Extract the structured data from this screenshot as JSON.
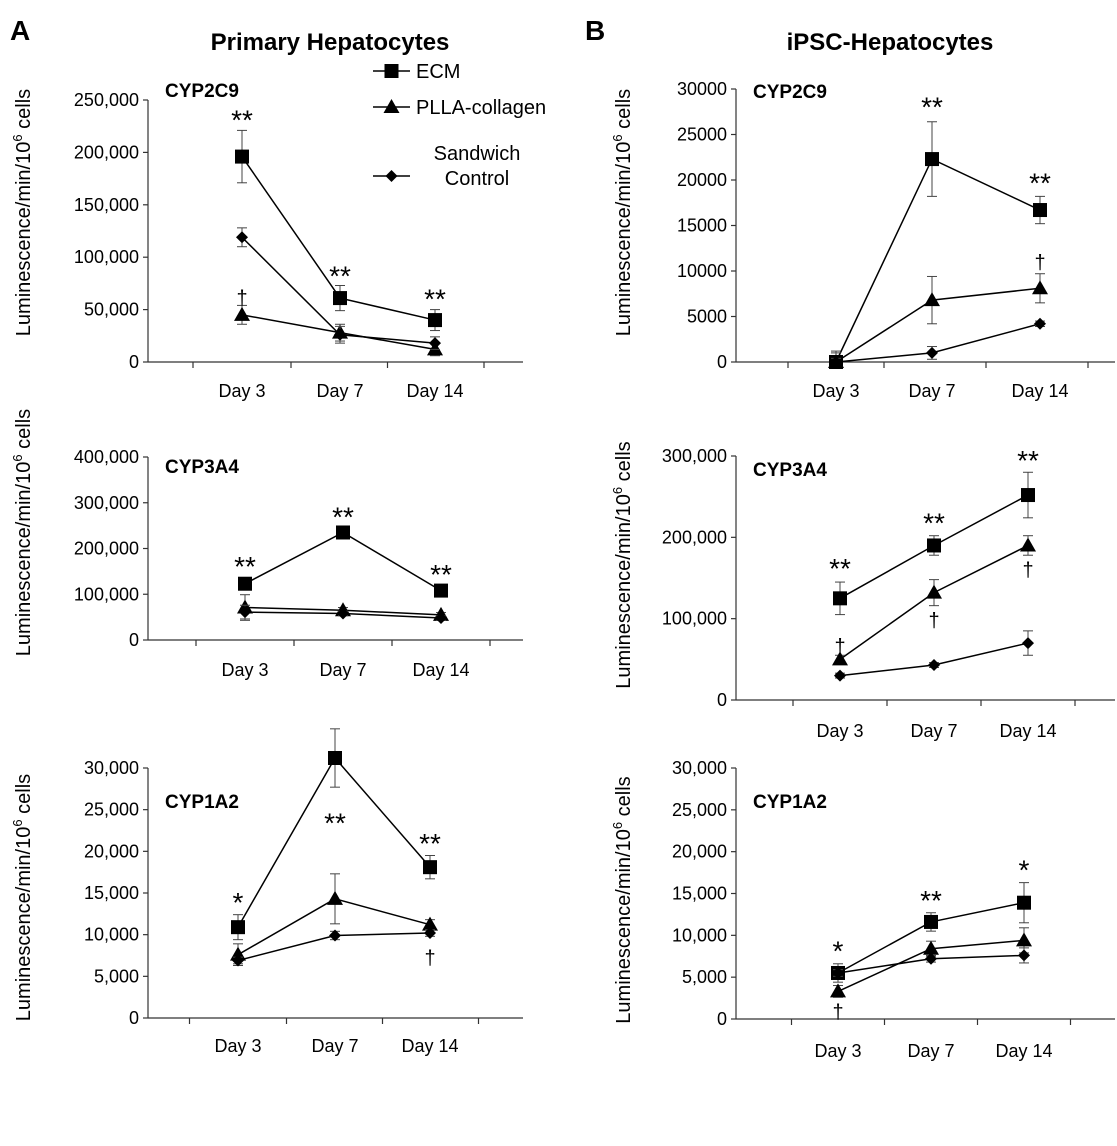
{
  "panels": {
    "A": {
      "letter": "A",
      "title": "Primary Hepatocytes"
    },
    "B": {
      "letter": "B",
      "title": "iPSC-Hepatocytes"
    }
  },
  "legend": {
    "placement": "top-right of top-left chart",
    "entries": [
      {
        "name": "ECM",
        "marker": "square"
      },
      {
        "name": "PLLA-collagen",
        "marker": "triangle"
      },
      {
        "name": "Sandwich\nControl",
        "marker": "diamond"
      }
    ]
  },
  "chart_data": [
    {
      "id": "A1",
      "panel": "A",
      "type": "line",
      "title": "CYP2C9",
      "categories": [
        "Day 3",
        "Day 7",
        "Day 14"
      ],
      "ylabel": "Luminescence/min/10^6 cells",
      "ylim": [
        0,
        250000
      ],
      "yticks": [
        0,
        50000,
        100000,
        150000,
        200000,
        250000
      ],
      "ytick_labels": [
        "0",
        "50,000",
        "100,000",
        "150,000",
        "200,000",
        "250,000"
      ],
      "grid": false,
      "series": [
        {
          "name": "ECM",
          "marker": "square",
          "values": [
            196000,
            61000,
            40000
          ],
          "errors": [
            25000,
            12000,
            10000
          ]
        },
        {
          "name": "PLLA-collagen",
          "marker": "triangle",
          "values": [
            45000,
            28000,
            12000
          ],
          "errors": [
            9000,
            8000,
            6000
          ]
        },
        {
          "name": "Sandwich\nControl",
          "marker": "diamond",
          "values": [
            119000,
            26000,
            18000
          ],
          "errors": [
            9000,
            8000,
            6000
          ]
        }
      ],
      "annotations": [
        {
          "text": "**",
          "category": 0,
          "y": 222000,
          "pos": "above"
        },
        {
          "text": "†",
          "category": 0,
          "y": 55000,
          "pos": "above"
        },
        {
          "text": "**",
          "category": 1,
          "y": 73000,
          "pos": "above"
        },
        {
          "text": "**",
          "category": 2,
          "y": 51000,
          "pos": "above"
        }
      ]
    },
    {
      "id": "A2",
      "panel": "A",
      "type": "line",
      "title": "CYP3A4",
      "categories": [
        "Day 3",
        "Day 7",
        "Day 14"
      ],
      "ylabel": "Luminescence/min/10^6 cells",
      "ylim": [
        0,
        400000
      ],
      "yticks": [
        0,
        100000,
        200000,
        300000,
        400000
      ],
      "ytick_labels": [
        "0",
        "100,000",
        "200,000",
        "300,000",
        "400,000"
      ],
      "grid": false,
      "series": [
        {
          "name": "ECM",
          "marker": "square",
          "values": [
            123000,
            235000,
            108000
          ],
          "errors": [
            0,
            0,
            0
          ]
        },
        {
          "name": "PLLA-collagen",
          "marker": "triangle",
          "values": [
            71000,
            65000,
            55000
          ],
          "errors": [
            28000,
            6000,
            5000
          ]
        },
        {
          "name": "Sandwich\nControl",
          "marker": "diamond",
          "values": [
            61000,
            58000,
            48000
          ],
          "errors": [
            15000,
            5000,
            5000
          ]
        }
      ],
      "annotations": [
        {
          "text": "**",
          "category": 0,
          "y": 140000,
          "pos": "above"
        },
        {
          "text": "**",
          "category": 1,
          "y": 248000,
          "pos": "above"
        },
        {
          "text": "**",
          "category": 2,
          "y": 122000,
          "pos": "above"
        }
      ]
    },
    {
      "id": "A3",
      "panel": "A",
      "type": "line",
      "title": "CYP1A2",
      "categories": [
        "Day 3",
        "Day 7",
        "Day 14"
      ],
      "ylabel": "Luminescence/min/10^6 cells",
      "ylim": [
        0,
        30000
      ],
      "yticks": [
        0,
        5000,
        10000,
        15000,
        20000,
        25000,
        30000
      ],
      "ytick_labels": [
        "0",
        "5,000",
        "10,000",
        "15,000",
        "20,000",
        "25,000",
        "30,000"
      ],
      "grid": false,
      "series": [
        {
          "name": "ECM",
          "marker": "square",
          "values": [
            10900,
            31200,
            18100
          ],
          "errors": [
            1500,
            3500,
            1400
          ]
        },
        {
          "name": "PLLA-collagen",
          "marker": "triangle",
          "values": [
            7600,
            14300,
            11200
          ],
          "errors": [
            1300,
            3000,
            600
          ]
        },
        {
          "name": "Sandwich\nControl",
          "marker": "diamond",
          "values": [
            6900,
            9900,
            10200
          ],
          "errors": [
            400,
            500,
            400
          ]
        }
      ],
      "annotations": [
        {
          "text": "*",
          "category": 0,
          "y": 12700,
          "pos": "above"
        },
        {
          "text": "**",
          "category": 1,
          "y": 25400,
          "pos": "below"
        },
        {
          "text": "**",
          "category": 2,
          "y": 19800,
          "pos": "above"
        },
        {
          "text": "†",
          "category": 2,
          "y": 8600,
          "pos": "below"
        }
      ]
    },
    {
      "id": "B1",
      "panel": "B",
      "type": "line",
      "title": "CYP2C9",
      "categories": [
        "Day 3",
        "Day 7",
        "Day 14"
      ],
      "ylabel": "Luminescence/min/10^6 cells",
      "ylim": [
        0,
        30000
      ],
      "yticks": [
        0,
        5000,
        10000,
        15000,
        20000,
        25000,
        30000
      ],
      "ytick_labels": [
        "0",
        "5000",
        "10000",
        "15000",
        "20000",
        "25000",
        "30000"
      ],
      "grid": false,
      "series": [
        {
          "name": "ECM",
          "marker": "square",
          "values": [
            0,
            22300,
            16700
          ],
          "errors": [
            1200,
            4100,
            1500
          ]
        },
        {
          "name": "PLLA-collagen",
          "marker": "triangle",
          "values": [
            0,
            6800,
            8100
          ],
          "errors": [
            1000,
            2600,
            1600
          ]
        },
        {
          "name": "Sandwich\nControl",
          "marker": "diamond",
          "values": [
            0,
            1000,
            4200
          ],
          "errors": [
            400,
            700,
            300
          ]
        }
      ],
      "annotations": [
        {
          "text": "**",
          "category": 1,
          "y": 27000,
          "pos": "above"
        },
        {
          "text": "**",
          "category": 2,
          "y": 18600,
          "pos": "above"
        },
        {
          "text": "†",
          "category": 2,
          "y": 10200,
          "pos": "above"
        }
      ]
    },
    {
      "id": "B2",
      "panel": "B",
      "type": "line",
      "title": "CYP3A4",
      "categories": [
        "Day 3",
        "Day 7",
        "Day 14"
      ],
      "ylabel": "Luminescence/min/10^6 cells",
      "ylim": [
        0,
        300000
      ],
      "yticks": [
        0,
        100000,
        200000,
        300000
      ],
      "ytick_labels": [
        "0",
        "100,000",
        "200,000",
        "300,000"
      ],
      "grid": false,
      "series": [
        {
          "name": "ECM",
          "marker": "square",
          "values": [
            125000,
            190000,
            252000
          ],
          "errors": [
            20000,
            12000,
            28000
          ]
        },
        {
          "name": "PLLA-collagen",
          "marker": "triangle",
          "values": [
            50000,
            132000,
            190000
          ],
          "errors": [
            5000,
            16000,
            12000
          ]
        },
        {
          "name": "Sandwich\nControl",
          "marker": "diamond",
          "values": [
            30000,
            43000,
            70000
          ],
          "errors": [
            3000,
            3000,
            15000
          ]
        }
      ],
      "annotations": [
        {
          "text": "**",
          "category": 0,
          "y": 150000,
          "pos": "above"
        },
        {
          "text": "†",
          "category": 0,
          "y": 58000,
          "pos": "above"
        },
        {
          "text": "**",
          "category": 1,
          "y": 206000,
          "pos": "above"
        },
        {
          "text": "†",
          "category": 1,
          "y": 112000,
          "pos": "below"
        },
        {
          "text": "**",
          "category": 2,
          "y": 283000,
          "pos": "above"
        },
        {
          "text": "†",
          "category": 2,
          "y": 174000,
          "pos": "below"
        }
      ]
    },
    {
      "id": "B3",
      "panel": "B",
      "type": "line",
      "title": "CYP1A2",
      "categories": [
        "Day 3",
        "Day 7",
        "Day 14"
      ],
      "ylabel": "Luminescence/min/10^6 cells",
      "ylim": [
        0,
        30000
      ],
      "yticks": [
        0,
        5000,
        10000,
        15000,
        20000,
        25000,
        30000
      ],
      "ytick_labels": [
        "0",
        "5,000",
        "10,000",
        "15,000",
        "20,000",
        "25,000",
        "30,000"
      ],
      "grid": false,
      "series": [
        {
          "name": "ECM",
          "marker": "square",
          "values": [
            5500,
            11600,
            13900
          ],
          "errors": [
            1100,
            1100,
            2400
          ]
        },
        {
          "name": "PLLA-collagen",
          "marker": "triangle",
          "values": [
            3300,
            8400,
            9400
          ],
          "errors": [
            700,
            900,
            1500
          ]
        },
        {
          "name": "Sandwich\nControl",
          "marker": "diamond",
          "values": [
            5500,
            7200,
            7600
          ],
          "errors": [
            400,
            400,
            900
          ]
        }
      ],
      "annotations": [
        {
          "text": "*",
          "category": 0,
          "y": 7000,
          "pos": "above"
        },
        {
          "text": "†",
          "category": 0,
          "y": 2200,
          "pos": "below"
        },
        {
          "text": "**",
          "category": 1,
          "y": 13000,
          "pos": "above"
        },
        {
          "text": "*",
          "category": 2,
          "y": 16700,
          "pos": "above"
        }
      ]
    }
  ]
}
